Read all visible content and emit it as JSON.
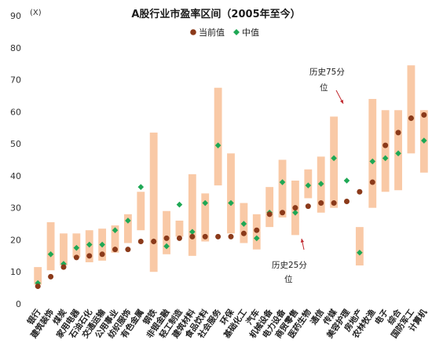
{
  "chart_data": {
    "type": "range-dot",
    "title": "A股行业市盈率区间（2005年至今）",
    "y_unit": "(X)",
    "ylim": [
      0,
      90
    ],
    "yticks": [
      0,
      10,
      20,
      30,
      40,
      50,
      60,
      70,
      80,
      90
    ],
    "grid": false,
    "legend": {
      "placement": "top",
      "items": [
        {
          "name": "当前值",
          "marker": "circle",
          "color": "#8B3A1A"
        },
        {
          "name": "中值",
          "marker": "diamond",
          "color": "#1FA855"
        }
      ]
    },
    "range_label_top": "历史75分位",
    "range_label_bottom": "历史25分位",
    "colors": {
      "range": "#F9C9A6",
      "current": "#8B3A1A",
      "median": "#1FA855",
      "arrow": "#C0282E"
    },
    "categories": [
      "银行",
      "建筑装饰",
      "煤炭",
      "家用电器",
      "石油石化",
      "交通运输",
      "公用事业",
      "纺织服饰",
      "有色金属",
      "钢铁",
      "非银金融",
      "轻工制造",
      "建筑材料",
      "食品饮料",
      "社会服务",
      "环保",
      "基础化工",
      "汽车",
      "机械设备",
      "电力设备",
      "商贸零售",
      "医药生物",
      "通信",
      "传媒",
      "美容护理",
      "房地产",
      "农林牧渔",
      "电子",
      "综合",
      "国防军工",
      "计算机"
    ],
    "p25": [
      6,
      10.5,
      12,
      14.5,
      13,
      13.5,
      16,
      19,
      23,
      10,
      15.5,
      21,
      15,
      19.5,
      37,
      22,
      19,
      17,
      24,
      27,
      21.5,
      33,
      28.5,
      30,
      null,
      12,
      30,
      35,
      35.5,
      47,
      41
    ],
    "p75": [
      11.5,
      25.5,
      22,
      22,
      23,
      23.5,
      24.5,
      28,
      35,
      53.5,
      29,
      26,
      40.5,
      34.5,
      67.5,
      47,
      31.5,
      28,
      36.5,
      45,
      38.5,
      42,
      46,
      58.5,
      48.5,
      24,
      64,
      60.5,
      60.5,
      74.5,
      60.5
    ],
    "current": [
      5.5,
      8.5,
      11.5,
      14.5,
      15,
      15.5,
      17,
      17,
      19.5,
      19.5,
      20.5,
      20.5,
      21,
      21,
      21,
      21,
      22,
      23,
      28,
      28.5,
      30,
      30.5,
      31.5,
      31.5,
      32,
      35,
      38,
      49.5,
      53.5,
      58,
      59
    ],
    "median": [
      6.5,
      15.5,
      12.5,
      17.5,
      18.5,
      18.5,
      23,
      26,
      36.5,
      19.5,
      18,
      31,
      22.5,
      31.5,
      49.5,
      31.5,
      25,
      20.5,
      28.5,
      38,
      28.5,
      37,
      37.5,
      45.5,
      38.5,
      16,
      44.5,
      45.5,
      47,
      58,
      51
    ]
  }
}
